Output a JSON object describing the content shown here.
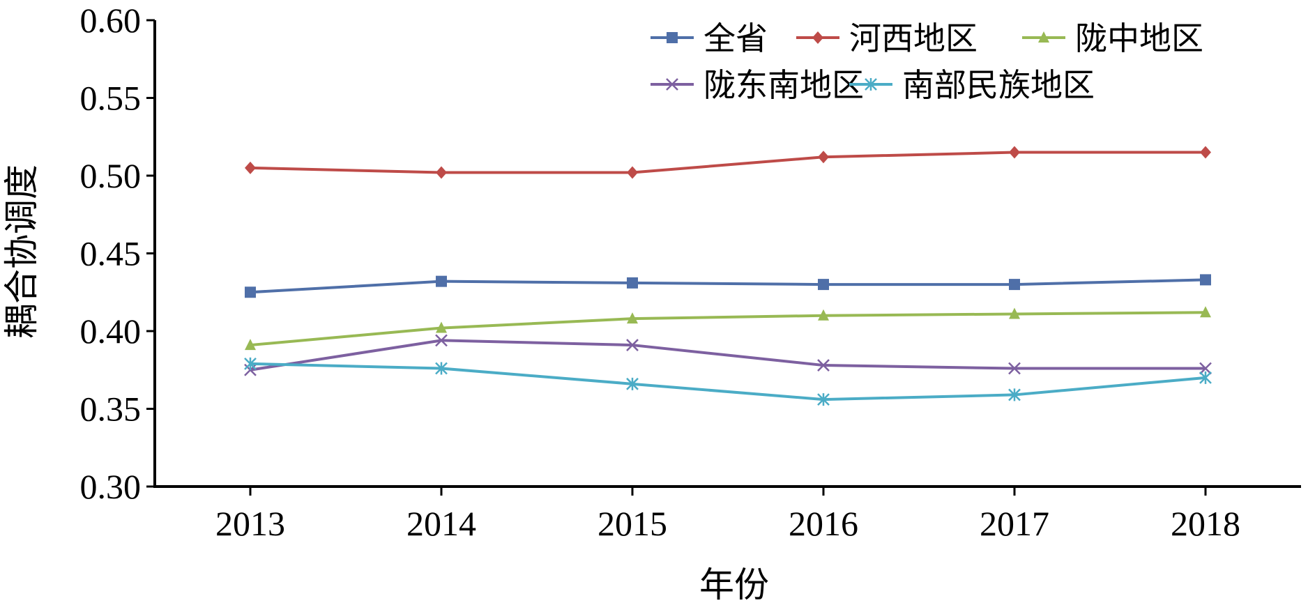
{
  "chart_data": {
    "type": "line",
    "title": "",
    "xlabel": "年份",
    "ylabel": "耦合协调度",
    "ylim": [
      0.3,
      0.6
    ],
    "y_ticks": [
      "0.30",
      "0.35",
      "0.40",
      "0.45",
      "0.50",
      "0.55",
      "0.60"
    ],
    "x": [
      "2013",
      "2014",
      "2015",
      "2016",
      "2017",
      "2018"
    ],
    "grid": false,
    "legend_position": "top-right",
    "series": [
      {
        "name": "全省",
        "color": "#4F6FA8",
        "marker": "square",
        "values": [
          0.425,
          0.432,
          0.431,
          0.43,
          0.43,
          0.433
        ]
      },
      {
        "name": "河西地区",
        "color": "#BE4B48",
        "marker": "diamond",
        "values": [
          0.505,
          0.502,
          0.502,
          0.512,
          0.515,
          0.515
        ]
      },
      {
        "name": "陇中地区",
        "color": "#98B954",
        "marker": "triangle",
        "values": [
          0.391,
          0.402,
          0.408,
          0.41,
          0.411,
          0.412
        ]
      },
      {
        "name": "陇东南地区",
        "color": "#7D60A0",
        "marker": "x",
        "values": [
          0.375,
          0.394,
          0.391,
          0.378,
          0.376,
          0.376
        ]
      },
      {
        "name": "南部民族地区",
        "color": "#4BACC6",
        "marker": "asterisk",
        "values": [
          0.379,
          0.376,
          0.366,
          0.356,
          0.359,
          0.37
        ]
      }
    ]
  }
}
